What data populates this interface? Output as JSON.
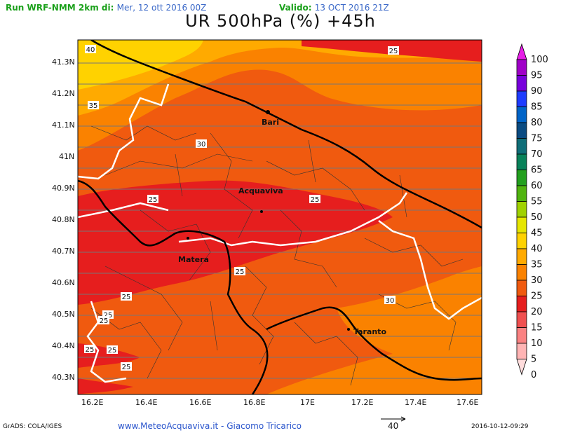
{
  "header": {
    "run_label": "Run WRF-NMM 2km di:",
    "run_date": "Mer, 12 ott 2016 00Z",
    "valid_label": "Valido:",
    "valid_date": "13 OCT 2016 21Z",
    "title": "UR 500hPa (%) +45h"
  },
  "map": {
    "lat_labels": [
      "41.3N",
      "41.2N",
      "41.1N",
      "41N",
      "40.9N",
      "40.8N",
      "40.7N",
      "40.6N",
      "40.5N",
      "40.4N",
      "40.3N"
    ],
    "lon_labels": [
      "16.2E",
      "16.4E",
      "16.6E",
      "16.8E",
      "17E",
      "17.2E",
      "17.4E",
      "17.6E"
    ],
    "cities": [
      "Bari",
      "Acquaviva",
      "Matera",
      "Taranto"
    ],
    "contour_labels": [
      "40",
      "35",
      "25",
      "30",
      "25",
      "25",
      "25",
      "25",
      "30",
      "25",
      "25",
      "25",
      "25",
      "25",
      "25"
    ]
  },
  "colorbar": {
    "levels": [
      "100",
      "95",
      "90",
      "85",
      "80",
      "75",
      "70",
      "65",
      "60",
      "55",
      "50",
      "45",
      "40",
      "35",
      "30",
      "25",
      "20",
      "15",
      "10",
      "5",
      "0"
    ],
    "colors": [
      "#a000c8",
      "#7800dc",
      "#1e3cff",
      "#0064c8",
      "#0a4b82",
      "#0f6e78",
      "#08825a",
      "#23a01e",
      "#50b40f",
      "#a0d200",
      "#e6e600",
      "#ffd200",
      "#ffaa00",
      "#fa8200",
      "#f05a0f",
      "#e61e1e",
      "#f05050",
      "#fa8282",
      "#ffb4b4"
    ]
  },
  "footer": {
    "software": "GrADS: COLA/IGES",
    "credit": "www.MeteoAcquaviva.it  -  Giacomo Tricarico",
    "vector_ref": "40",
    "timestamp": "2016-10-12-09:29"
  }
}
